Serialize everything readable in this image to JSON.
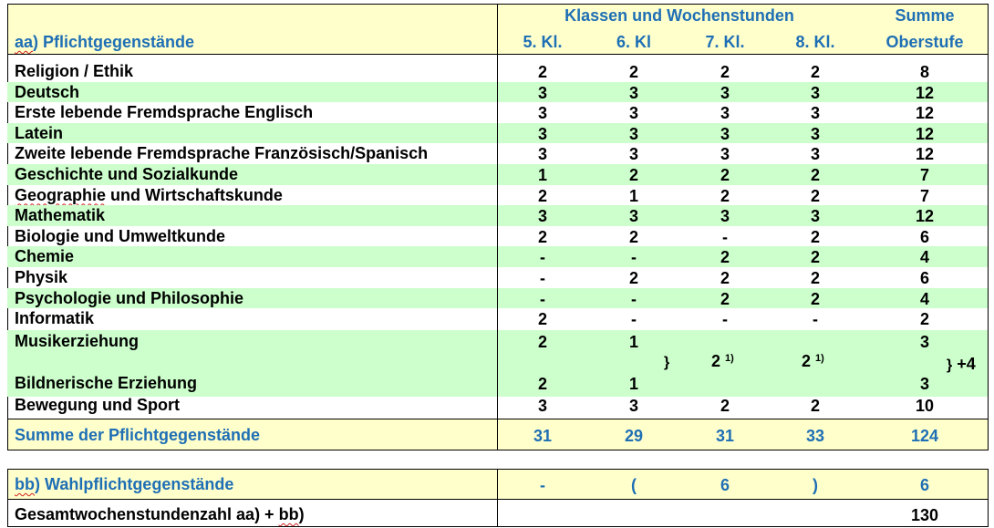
{
  "header": {
    "group_title": "Klassen und Wochenstunden",
    "summe": "Summe",
    "section_prefix": "aa",
    "section_rest": ") Pflichtgegenstände",
    "cols": [
      "5. Kl.",
      "6. Kl",
      "7. Kl.",
      "8. Kl."
    ],
    "oberstufe": "Oberstufe"
  },
  "rows": [
    {
      "name": "Religion / Ethik",
      "v": [
        "2",
        "2",
        "2",
        "2"
      ],
      "sum": "8",
      "green": false
    },
    {
      "name": "Deutsch",
      "v": [
        "3",
        "3",
        "3",
        "3"
      ],
      "sum": "12",
      "green": true
    },
    {
      "name": "Erste lebende Fremdsprache Englisch",
      "v": [
        "3",
        "3",
        "3",
        "3"
      ],
      "sum": "12",
      "green": false
    },
    {
      "name": "Latein",
      "v": [
        "3",
        "3",
        "3",
        "3"
      ],
      "sum": "12",
      "green": true
    },
    {
      "name": "Zweite lebende Fremdsprache Französisch/Spanisch",
      "v": [
        "3",
        "3",
        "3",
        "3"
      ],
      "sum": "12",
      "green": false
    },
    {
      "name": "Geschichte und Sozialkunde",
      "v": [
        "1",
        "2",
        "2",
        "2"
      ],
      "sum": "7",
      "green": true
    },
    {
      "name": "Geographie und Wirtschaftskunde",
      "v": [
        "2",
        "1",
        "2",
        "2"
      ],
      "sum": "7",
      "green": false
    },
    {
      "name": "Mathematik",
      "v": [
        "3",
        "3",
        "3",
        "3"
      ],
      "sum": "12",
      "green": true
    },
    {
      "name": "Biologie und Umweltkunde",
      "v": [
        "2",
        "2",
        "-",
        "2"
      ],
      "sum": "6",
      "green": false
    },
    {
      "name": "Chemie",
      "v": [
        "-",
        "-",
        "2",
        "2"
      ],
      "sum": "4",
      "green": true
    },
    {
      "name": "Physik",
      "v": [
        "-",
        "2",
        "2",
        "2"
      ],
      "sum": "6",
      "green": false
    },
    {
      "name": "Psychologie und Philosophie",
      "v": [
        "-",
        "-",
        "2",
        "2"
      ],
      "sum": "4",
      "green": true
    },
    {
      "name": "Informatik",
      "v": [
        "2",
        "-",
        "-",
        "-"
      ],
      "sum": "2",
      "green": false
    }
  ],
  "merged": {
    "musik": {
      "name": "Musikerziehung",
      "v5": "2",
      "v6": "1",
      "sum": "3"
    },
    "bild": {
      "name": "Bildnerische Erziehung",
      "v5": "2",
      "v6": "1",
      "sum": "3"
    },
    "brace": "}",
    "v7": "2",
    "v8": "2",
    "footnote": "1)",
    "extra": "+4"
  },
  "sport": {
    "name": "Bewegung und Sport",
    "v": [
      "3",
      "3",
      "2",
      "2"
    ],
    "sum": "10"
  },
  "summe_row": {
    "label": "Summe der Pflichtgegenstände",
    "v": [
      "31",
      "29",
      "31",
      "33"
    ],
    "sum": "124"
  },
  "wahl": {
    "prefix": "bb",
    "rest": ") Wahlpflichtgegenstände",
    "v": [
      "-",
      "(",
      "6",
      ")"
    ],
    "sum": "6"
  },
  "gesamt": {
    "label_a": "Gesamtwochenstundenzahl aa) + ",
    "label_b": "bb",
    "label_c": ")",
    "sum": "130"
  }
}
